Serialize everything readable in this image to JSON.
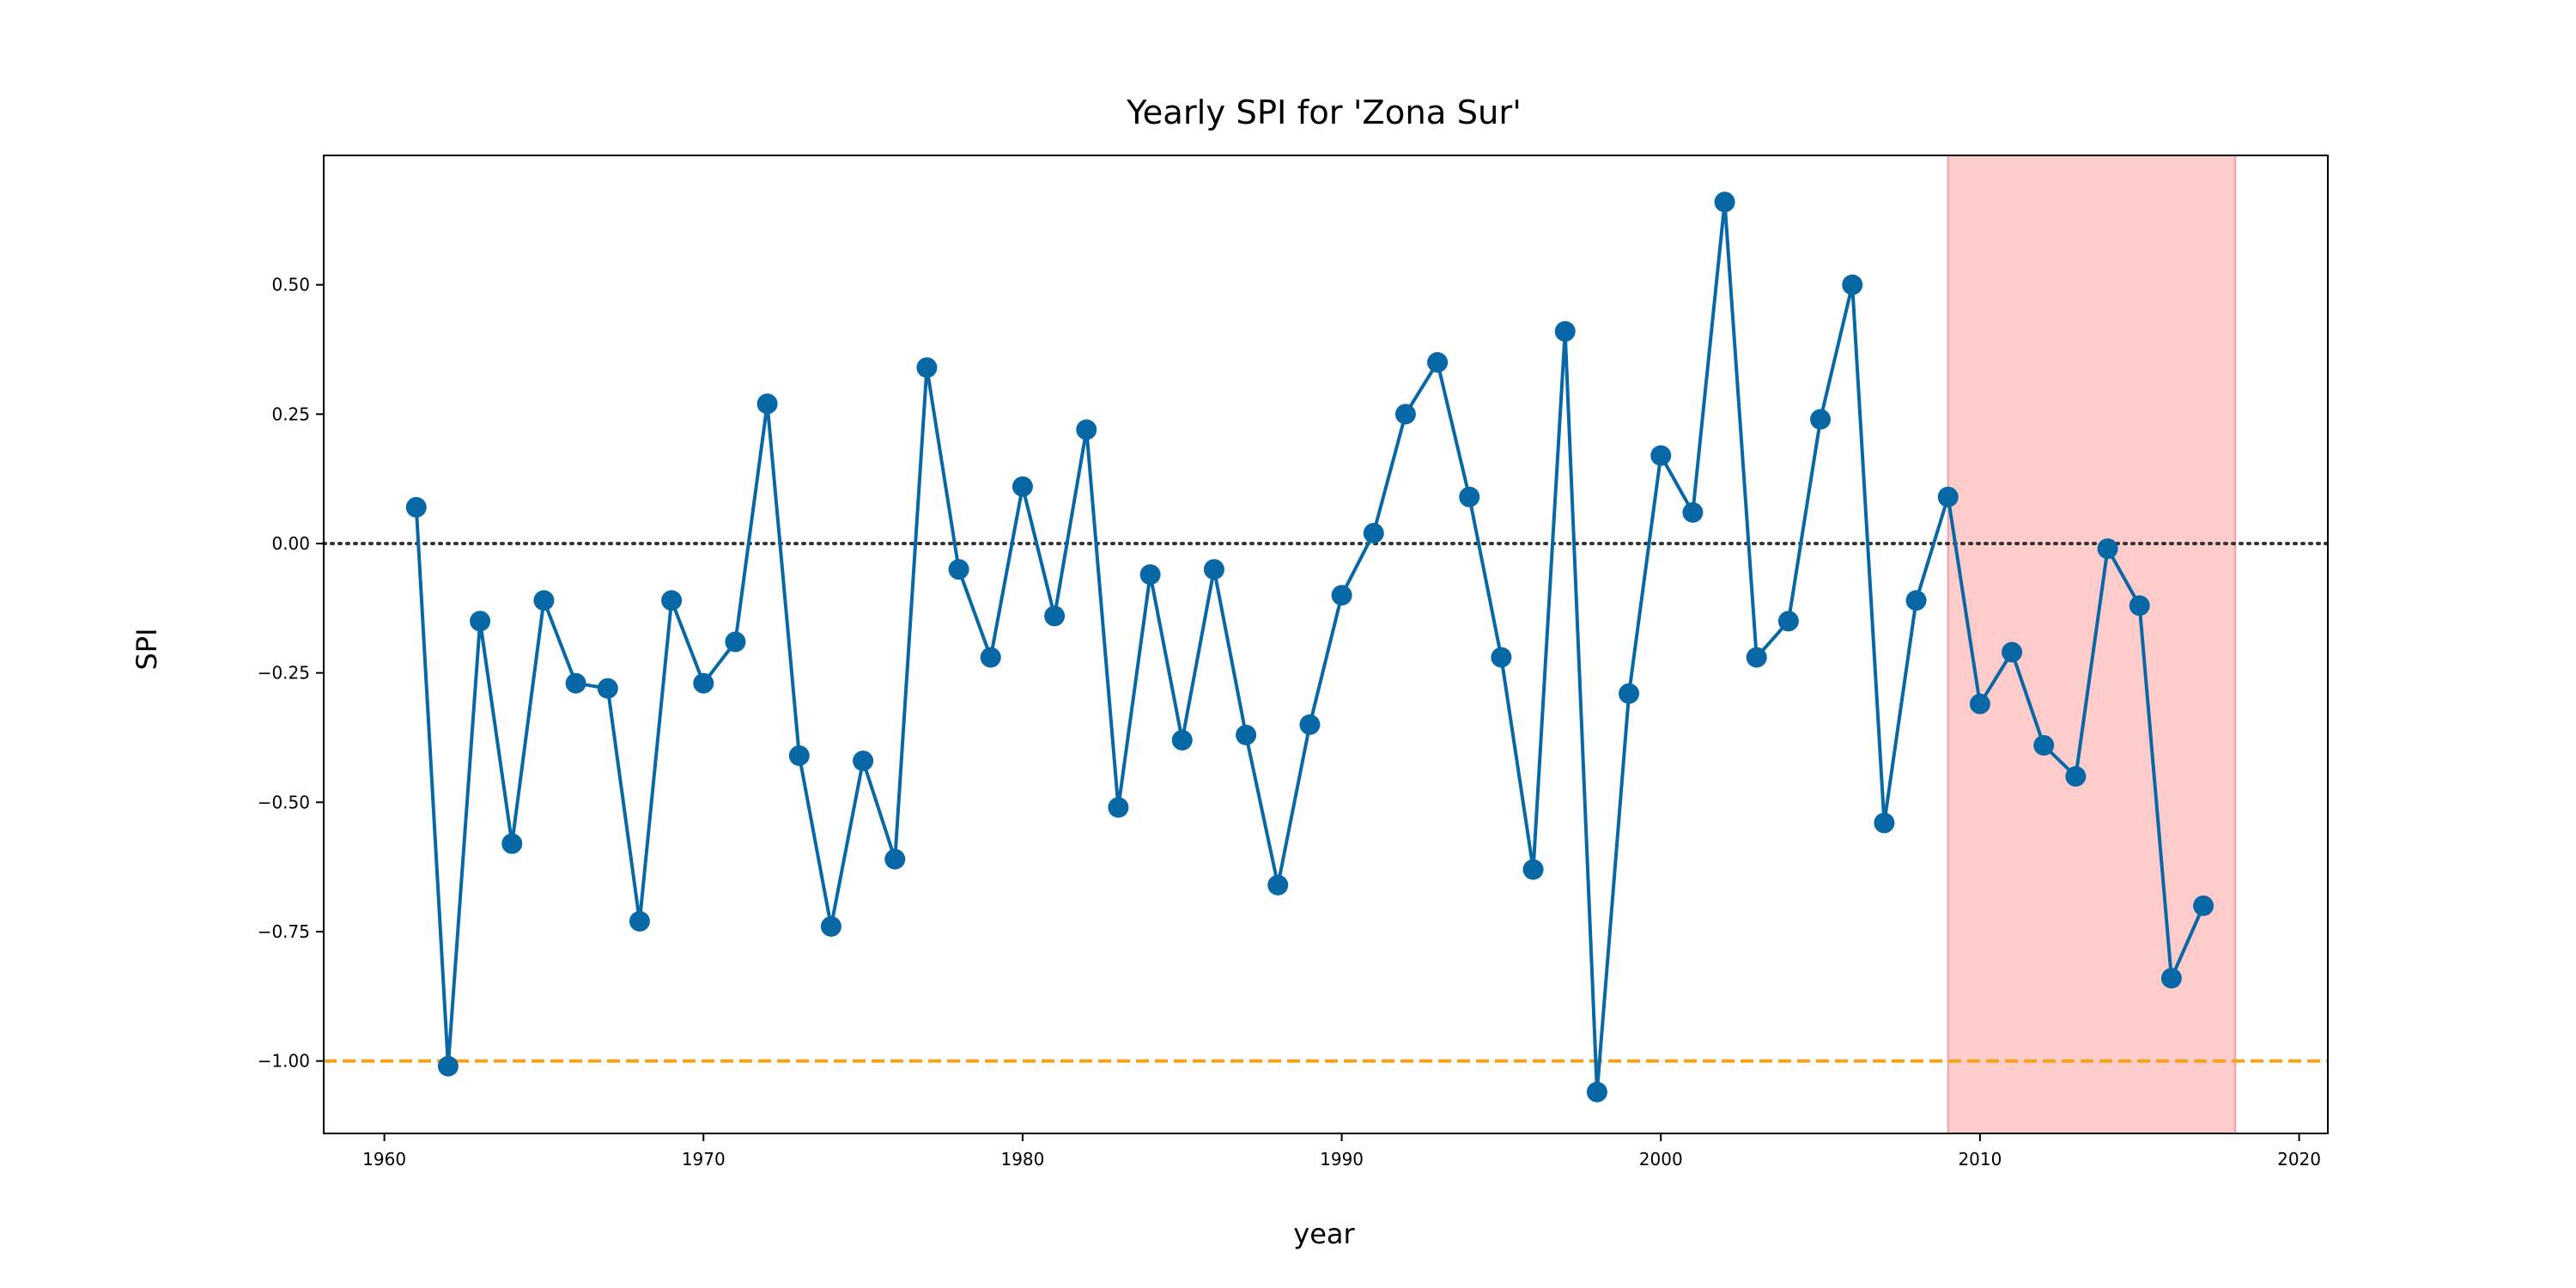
{
  "chart_data": {
    "type": "line",
    "title": "Yearly SPI for 'Zona Sur'",
    "xlabel": "year",
    "ylabel": "SPI",
    "xlim": [
      1958.1,
      2020.9
    ],
    "ylim": [
      -1.14,
      0.75
    ],
    "xticks": [
      1960,
      1970,
      1980,
      1990,
      2000,
      2010,
      2020
    ],
    "xtick_labels": [
      "1960",
      "1970",
      "1980",
      "1990",
      "2000",
      "2010",
      "2020"
    ],
    "yticks": [
      -1.0,
      -0.75,
      -0.5,
      -0.25,
      0.0,
      0.25,
      0.5
    ],
    "ytick_labels": [
      "−1.00",
      "−0.75",
      "−0.50",
      "−0.25",
      "0.00",
      "0.25",
      "0.50"
    ],
    "grid": false,
    "colors": {
      "series": "#0868a6",
      "zero_line": "#333333",
      "threshold_line": "#f5a21b",
      "highlight_band": "#ffcccc",
      "highlight_edge": "#f0a0a0"
    },
    "reference_lines": [
      {
        "y": 0.0,
        "style": "dotted"
      },
      {
        "y": -1.0,
        "style": "dashed"
      }
    ],
    "highlight_span": {
      "x0": 2009,
      "x1": 2018
    },
    "series": [
      {
        "x": [
          1961,
          1962,
          1963,
          1964,
          1965,
          1966,
          1967,
          1968,
          1969,
          1970,
          1971,
          1972,
          1973,
          1974,
          1975,
          1976,
          1977,
          1978,
          1979,
          1980,
          1981,
          1982,
          1983,
          1984,
          1985,
          1986,
          1987,
          1988,
          1989,
          1990,
          1991,
          1992,
          1993,
          1994,
          1995,
          1996,
          1997,
          1998,
          1999,
          2000,
          2001,
          2002,
          2003,
          2004,
          2005,
          2006,
          2007,
          2008,
          2009,
          2010,
          2011,
          2012,
          2013,
          2014,
          2015,
          2016,
          2017
        ],
        "values": [
          0.07,
          -1.01,
          -0.15,
          -0.58,
          -0.11,
          -0.27,
          -0.28,
          -0.73,
          -0.11,
          -0.27,
          -0.19,
          0.27,
          -0.41,
          -0.74,
          -0.42,
          -0.61,
          0.34,
          -0.05,
          -0.22,
          0.11,
          -0.14,
          0.22,
          -0.51,
          -0.06,
          -0.38,
          -0.05,
          -0.37,
          -0.66,
          -0.35,
          -0.1,
          0.02,
          0.25,
          0.35,
          0.09,
          -0.22,
          -0.63,
          0.41,
          -1.06,
          -0.29,
          0.17,
          0.06,
          0.66,
          -0.22,
          -0.15,
          0.24,
          0.5,
          -0.54,
          -0.11,
          0.09,
          -0.31,
          -0.21,
          -0.39,
          -0.45,
          -0.01,
          -0.12,
          -0.84,
          -0.7
        ]
      }
    ]
  }
}
